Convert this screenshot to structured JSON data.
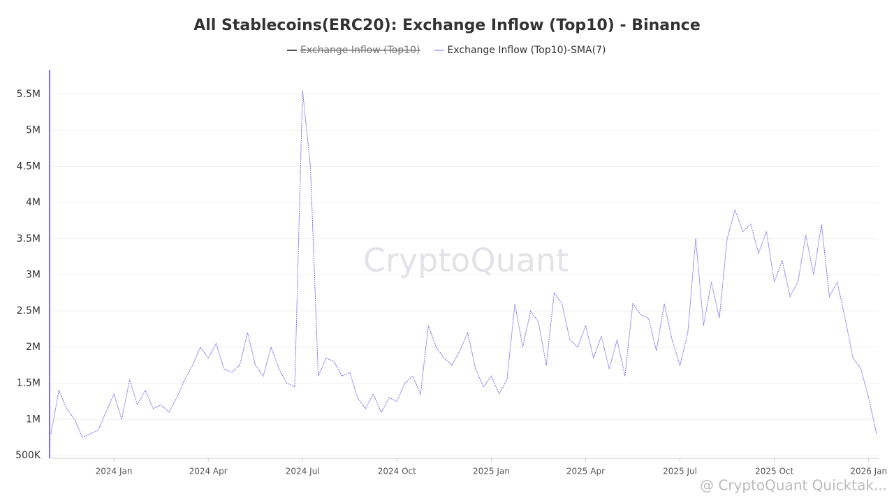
{
  "chart_data": {
    "type": "line",
    "title": "All Stablecoins(ERC20): Exchange Inflow (Top10) - Binance",
    "watermark": "CryptoQuant",
    "attribution": "@ CryptoQuant Quicktak...",
    "categories": [
      null,
      null,
      null,
      null,
      null,
      null,
      null,
      null,
      "2024 Jan",
      null,
      null,
      null,
      null,
      null,
      null,
      null,
      null,
      null,
      null,
      null,
      "2024 Apr",
      null,
      null,
      null,
      null,
      null,
      null,
      null,
      null,
      null,
      null,
      null,
      "2024 Jul",
      null,
      null,
      null,
      null,
      null,
      null,
      null,
      null,
      null,
      null,
      null,
      "2024 Oct",
      null,
      null,
      null,
      null,
      null,
      null,
      null,
      null,
      null,
      null,
      null,
      "2025 Jan",
      null,
      null,
      null,
      null,
      null,
      null,
      null,
      null,
      null,
      null,
      null,
      "2025 Apr",
      null,
      null,
      null,
      null,
      null,
      null,
      null,
      null,
      null,
      null,
      null,
      "2025 Jul",
      null,
      null,
      null,
      null,
      null,
      null,
      null,
      null,
      null,
      null,
      null,
      "2025 Oct",
      null,
      null,
      null,
      null,
      null,
      null,
      null,
      null,
      null,
      null,
      null,
      "2026 Jan",
      null
    ],
    "series": [
      {
        "name": "Exchange Inflow (Top10)",
        "color": "#555555",
        "visible": false
      },
      {
        "name": "Exchange Inflow (Top10)-SMA(7)",
        "color": "#7b6cf0",
        "visible": true,
        "values": [
          800000,
          1400000,
          1150000,
          1000000,
          750000,
          800000,
          850000,
          1100000,
          1350000,
          1000000,
          1550000,
          1200000,
          1400000,
          1150000,
          1200000,
          1100000,
          1300000,
          1550000,
          1750000,
          2000000,
          1850000,
          2050000,
          1700000,
          1650000,
          1750000,
          2200000,
          1750000,
          1600000,
          2000000,
          1700000,
          1500000,
          1450000,
          5550000,
          4500000,
          1600000,
          1850000,
          1800000,
          1600000,
          1650000,
          1300000,
          1150000,
          1350000,
          1100000,
          1300000,
          1250000,
          1500000,
          1600000,
          1350000,
          2300000,
          2000000,
          1850000,
          1750000,
          1950000,
          2200000,
          1700000,
          1450000,
          1600000,
          1350000,
          1550000,
          2600000,
          2000000,
          2500000,
          2350000,
          1750000,
          2750000,
          2600000,
          2100000,
          2000000,
          2300000,
          1850000,
          2150000,
          1700000,
          2100000,
          1600000,
          2600000,
          2450000,
          2400000,
          1950000,
          2600000,
          2100000,
          1750000,
          2200000,
          3500000,
          2300000,
          2900000,
          2400000,
          3500000,
          3900000,
          3600000,
          3700000,
          3300000,
          3600000,
          2900000,
          3200000,
          2700000,
          2900000,
          3550000,
          3000000,
          3700000,
          2700000,
          2900000,
          2400000,
          1850000,
          1700000,
          1300000,
          800000
        ]
      }
    ],
    "ylim": [
      500000,
      5800000
    ],
    "yticks": [
      {
        "value": 500000,
        "label": "500K"
      },
      {
        "value": 1000000,
        "label": "1M"
      },
      {
        "value": 1500000,
        "label": "1.5M"
      },
      {
        "value": 2000000,
        "label": "2M"
      },
      {
        "value": 2500000,
        "label": "2.5M"
      },
      {
        "value": 3000000,
        "label": "3M"
      },
      {
        "value": 3500000,
        "label": "3.5M"
      },
      {
        "value": 4000000,
        "label": "4M"
      },
      {
        "value": 4500000,
        "label": "4.5M"
      },
      {
        "value": 5000000,
        "label": "5M"
      },
      {
        "value": 5500000,
        "label": "5.5M"
      }
    ],
    "grid": true
  }
}
